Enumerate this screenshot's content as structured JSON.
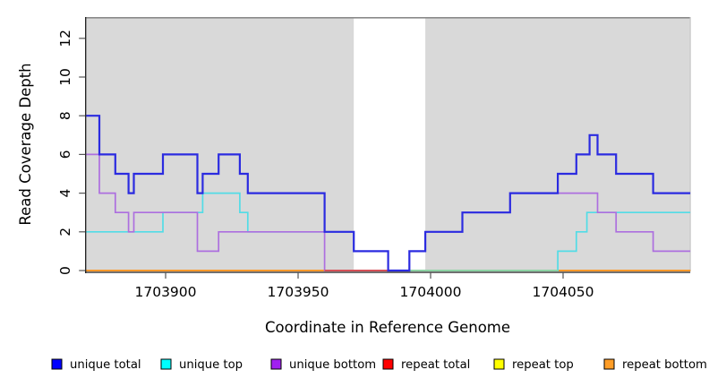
{
  "chart_data": {
    "type": "line",
    "subtype": "step",
    "title": "",
    "xlabel": "Coordinate in Reference Genome",
    "ylabel": "Read Coverage Depth",
    "xlim": [
      1703870,
      1704098
    ],
    "ylim": [
      0,
      13
    ],
    "x_ticks": [
      1703900,
      1703950,
      1704000,
      1704050
    ],
    "y_ticks": [
      0,
      2,
      4,
      6,
      8,
      10,
      12
    ],
    "grid": false,
    "legend_position": "bottom",
    "panel_bg": "#d9d9d9",
    "unshaded_region": [
      1703971,
      1703998
    ],
    "series": [
      {
        "name": "unique total",
        "legend_color": "#0000ff",
        "line_color": "#2b2be0",
        "line_width": 2.2,
        "steps": [
          [
            1703870,
            8
          ],
          [
            1703875,
            6
          ],
          [
            1703881,
            5
          ],
          [
            1703886,
            4
          ],
          [
            1703888,
            5
          ],
          [
            1703899,
            6
          ],
          [
            1703912,
            4
          ],
          [
            1703914,
            5
          ],
          [
            1703920,
            6
          ],
          [
            1703928,
            5
          ],
          [
            1703931,
            4
          ],
          [
            1703960,
            2
          ],
          [
            1703971,
            1
          ],
          [
            1703984,
            0
          ],
          [
            1703992,
            1
          ],
          [
            1703998,
            2
          ],
          [
            1704012,
            3
          ],
          [
            1704030,
            4
          ],
          [
            1704048,
            5
          ],
          [
            1704055,
            6
          ],
          [
            1704060,
            7
          ],
          [
            1704063,
            6
          ],
          [
            1704070,
            5
          ],
          [
            1704084,
            4
          ]
        ]
      },
      {
        "name": "unique top",
        "legend_color": "#00ffff",
        "line_color": "#52dce6",
        "line_width": 1.7,
        "steps": [
          [
            1703870,
            2
          ],
          [
            1703899,
            3
          ],
          [
            1703914,
            4
          ],
          [
            1703928,
            3
          ],
          [
            1703931,
            2
          ],
          [
            1703971,
            1
          ],
          [
            1703984,
            0
          ],
          [
            1704048,
            1
          ],
          [
            1704055,
            2
          ],
          [
            1704059,
            3
          ]
        ]
      },
      {
        "name": "unique bottom",
        "legend_color": "#a020f0",
        "line_color": "#ad6fdf",
        "line_width": 1.7,
        "steps": [
          [
            1703870,
            6
          ],
          [
            1703875,
            4
          ],
          [
            1703881,
            3
          ],
          [
            1703886,
            2
          ],
          [
            1703888,
            3
          ],
          [
            1703912,
            1
          ],
          [
            1703920,
            2
          ],
          [
            1703960,
            0
          ],
          [
            1703992,
            1
          ],
          [
            1703998,
            2
          ],
          [
            1704012,
            3
          ],
          [
            1704030,
            4
          ],
          [
            1704063,
            3
          ],
          [
            1704070,
            2
          ],
          [
            1704084,
            1
          ]
        ]
      },
      {
        "name": "repeat total",
        "legend_color": "#ff0000",
        "line_color": "#e04848",
        "line_width": 1.8,
        "steps": [
          [
            1703870,
            0
          ]
        ]
      },
      {
        "name": "repeat top",
        "legend_color": "#ffff00",
        "line_color": "#ffff00",
        "line_width": 1.8,
        "steps": [
          [
            1703870,
            0
          ]
        ]
      },
      {
        "name": "repeat bottom",
        "legend_color": "#ff9d26",
        "line_color": "#ff9d26",
        "line_width": 1.8,
        "steps": [
          [
            1703870,
            0
          ]
        ]
      }
    ],
    "baseline_artifacts": [
      {
        "from": 1703960,
        "to": 1703984,
        "color": "#d84a4a"
      },
      {
        "from": 1703992,
        "to": 1704048,
        "color": "#8fd3a0"
      }
    ]
  }
}
